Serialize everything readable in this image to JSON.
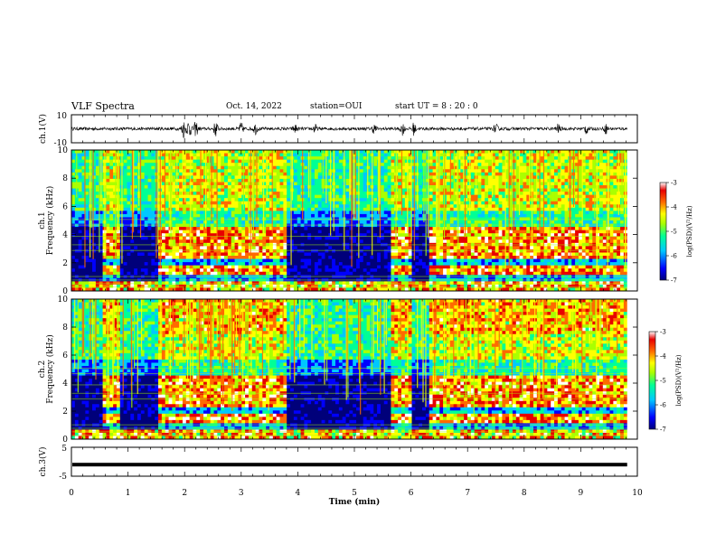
{
  "header": {
    "title": "VLF Spectra",
    "date": "Oct. 14, 2022",
    "station": "station=OUI",
    "start_ut": "start UT =  8 : 20 : 0"
  },
  "chart_data": [
    {
      "name": "ch1-waveform",
      "type": "line",
      "ylabel": "ch.1(V)",
      "ylim": [
        -10,
        10
      ],
      "y_ticks": [
        "10",
        "-10"
      ],
      "xlim": [
        0,
        10
      ],
      "bursts": [
        {
          "t": 1.98,
          "amp": 6
        },
        {
          "t": 2.08,
          "amp": 7
        },
        {
          "t": 2.2,
          "amp": 5
        },
        {
          "t": 2.55,
          "amp": 5
        },
        {
          "t": 3.0,
          "amp": 4
        },
        {
          "t": 3.25,
          "amp": 3.5
        },
        {
          "t": 3.95,
          "amp": 3
        },
        {
          "t": 4.3,
          "amp": 3
        },
        {
          "t": 5.35,
          "amp": 3
        },
        {
          "t": 5.85,
          "amp": 4
        },
        {
          "t": 6.05,
          "amp": 4
        },
        {
          "t": 7.5,
          "amp": 3
        },
        {
          "t": 8.6,
          "amp": 3
        },
        {
          "t": 9.1,
          "amp": 3.5
        },
        {
          "t": 9.45,
          "amp": 3
        }
      ]
    },
    {
      "name": "ch1-spectrogram",
      "type": "heatmap",
      "label": "ch.1",
      "ylabel": "Frequency (kHz)",
      "ylim": [
        0,
        10
      ],
      "y_ticks": [
        "0",
        "2",
        "4",
        "6",
        "8",
        "10"
      ],
      "xlim": [
        0,
        10
      ],
      "quiet_intervals": [
        [
          0.0,
          0.5
        ],
        [
          0.82,
          1.5
        ],
        [
          3.8,
          4.5
        ],
        [
          4.5,
          5.6
        ],
        [
          6.0,
          6.3
        ]
      ],
      "colorbar": {
        "label": "log(PSD)(V²/Hz)",
        "range": [
          -7,
          -3
        ],
        "ticks": [
          "-3",
          "-4",
          "-5",
          "-6",
          "-7"
        ]
      }
    },
    {
      "name": "ch2-spectrogram",
      "type": "heatmap",
      "label": "ch.2",
      "ylabel": "Frequency (kHz)",
      "ylim": [
        0,
        10
      ],
      "y_ticks": [
        "0",
        "2",
        "4",
        "6",
        "8",
        "10"
      ],
      "xlim": [
        0,
        10
      ],
      "quiet_intervals": [
        [
          0.0,
          0.5
        ],
        [
          0.82,
          1.5
        ],
        [
          3.8,
          4.5
        ],
        [
          4.5,
          5.6
        ],
        [
          6.0,
          6.3
        ]
      ],
      "colorbar": {
        "label": "log(PSD)(V²/Hz)",
        "range": [
          -7,
          -3
        ],
        "ticks": [
          "-3",
          "-4",
          "-5",
          "-6",
          "-7"
        ]
      }
    },
    {
      "name": "ch3-waveform",
      "type": "line",
      "ylabel": "ch.3(V)",
      "ylim": [
        -5,
        5
      ],
      "y_ticks": [
        "5",
        "-5"
      ],
      "xlim": [
        0,
        10
      ],
      "level": -1,
      "x_ticks": [
        "0",
        "1",
        "2",
        "3",
        "4",
        "5",
        "6",
        "7",
        "8",
        "9",
        "10"
      ],
      "xlabel": "Time (min)"
    }
  ],
  "colors": {
    "colormap": [
      "#00007a",
      "#0000ff",
      "#00c8ff",
      "#00ff96",
      "#aaff00",
      "#ffff00",
      "#ff6a00",
      "#e80000",
      "#ffffff"
    ]
  }
}
